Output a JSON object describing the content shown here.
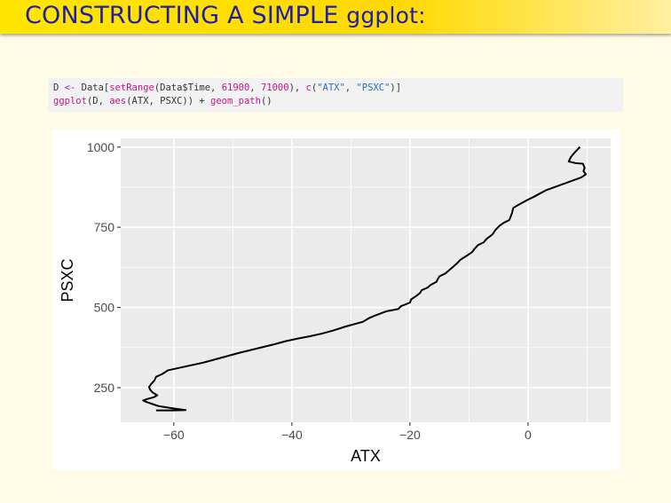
{
  "slide": {
    "title_main": "CONSTRUCTING A SIMPLE ",
    "title_code": "ggplot:",
    "code": {
      "line1": {
        "a": "D ",
        "b": "<-",
        "c": " Data[",
        "d": "setRange",
        "e": "(Data$Time, ",
        "f": "61900",
        "g": ", ",
        "h": "71000",
        "i": "), ",
        "j": "c",
        "k": "(",
        "l": "\"ATX\"",
        "m": ", ",
        "n": "\"PSXC\"",
        "o": ")]"
      },
      "line2": {
        "a": "ggplot",
        "b": "(D, ",
        "c": "aes",
        "d": "(ATX, PSXC)) + ",
        "e": "geom_path",
        "f": "()"
      }
    }
  },
  "chart_data": {
    "type": "line",
    "title": "",
    "xlabel": "ATX",
    "ylabel": "PSXC",
    "xlim": [
      -69,
      14
    ],
    "ylim": [
      142,
      1027
    ],
    "x_ticks": [
      -60,
      -40,
      -20,
      0
    ],
    "x_tick_labels": [
      "−60",
      "−40",
      "−20",
      "0"
    ],
    "y_ticks": [
      250,
      500,
      750,
      1000
    ],
    "y_tick_labels": [
      "250",
      "500",
      "750",
      "1000"
    ],
    "grid": true,
    "series": [
      {
        "color": "#000000",
        "points": [
          [
            8.8,
            1000
          ],
          [
            8,
            985
          ],
          [
            7.3,
            970
          ],
          [
            6.9,
            955
          ],
          [
            8,
            950
          ],
          [
            9.3,
            948
          ],
          [
            9.6,
            935
          ],
          [
            9.4,
            925
          ],
          [
            9.8,
            915
          ],
          [
            9,
            905
          ],
          [
            7.5,
            895
          ],
          [
            6,
            885
          ],
          [
            4.5,
            875
          ],
          [
            3,
            865
          ],
          [
            2,
            855
          ],
          [
            1,
            845
          ],
          [
            0,
            836
          ],
          [
            -1,
            826
          ],
          [
            -1.8,
            818
          ],
          [
            -2.5,
            810
          ],
          [
            -2.7,
            795
          ],
          [
            -3,
            780
          ],
          [
            -3.2,
            772
          ],
          [
            -4,
            765
          ],
          [
            -4.8,
            755
          ],
          [
            -5.5,
            742
          ],
          [
            -6,
            728
          ],
          [
            -7,
            714
          ],
          [
            -7.5,
            703
          ],
          [
            -8.5,
            694
          ],
          [
            -9,
            684
          ],
          [
            -9.5,
            672
          ],
          [
            -10.3,
            662
          ],
          [
            -11,
            654
          ],
          [
            -11.5,
            648
          ],
          [
            -12,
            638
          ],
          [
            -12.6,
            628
          ],
          [
            -13.3,
            617
          ],
          [
            -14,
            606
          ],
          [
            -15,
            597
          ],
          [
            -15.3,
            588
          ],
          [
            -15.5,
            580
          ],
          [
            -16.5,
            570
          ],
          [
            -17,
            562
          ],
          [
            -18,
            554
          ],
          [
            -18.3,
            545
          ],
          [
            -19,
            535
          ],
          [
            -19.8,
            525
          ],
          [
            -20,
            515
          ],
          [
            -21.5,
            504
          ],
          [
            -22,
            495
          ],
          [
            -24,
            488
          ],
          [
            -25,
            481
          ],
          [
            -26,
            474
          ],
          [
            -27,
            466
          ],
          [
            -28,
            455
          ],
          [
            -31,
            440
          ],
          [
            -33,
            428
          ],
          [
            -35,
            418
          ],
          [
            -37,
            410
          ],
          [
            -39,
            403
          ],
          [
            -41,
            395
          ],
          [
            -43,
            385
          ],
          [
            -45,
            376
          ],
          [
            -47,
            367
          ],
          [
            -49,
            358
          ],
          [
            -51,
            348
          ],
          [
            -53,
            338
          ],
          [
            -55,
            328
          ],
          [
            -58,
            316
          ],
          [
            -61,
            304
          ],
          [
            -62,
            292
          ],
          [
            -63,
            284
          ],
          [
            -63.3,
            272
          ],
          [
            -63.8,
            262
          ],
          [
            -64.2,
            252
          ],
          [
            -64,
            243
          ],
          [
            -63.6,
            235
          ],
          [
            -62.8,
            226
          ],
          [
            -63.4,
            220
          ],
          [
            -64.6,
            214
          ],
          [
            -65.2,
            210
          ],
          [
            -64.6,
            205
          ],
          [
            -63.5,
            198
          ],
          [
            -62.5,
            192
          ],
          [
            -60,
            185
          ],
          [
            -58,
            180
          ],
          [
            -60,
            179
          ],
          [
            -63,
            179
          ]
        ]
      }
    ]
  }
}
